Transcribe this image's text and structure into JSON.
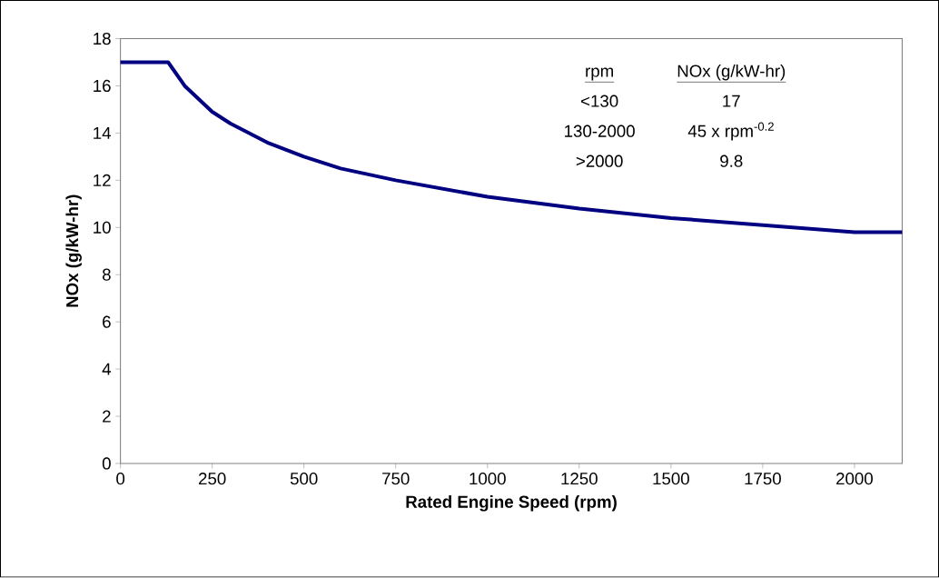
{
  "chart_data": {
    "type": "line",
    "xlabel": "Rated Engine Speed (rpm)",
    "ylabel": "NOx (g/kW-hr)",
    "x": [
      0,
      130,
      175,
      250,
      300,
      400,
      500,
      600,
      750,
      1000,
      1250,
      1500,
      1750,
      2000,
      2130
    ],
    "series": [
      {
        "color": "#000080",
        "values": [
          17,
          17,
          16,
          14.9,
          14.4,
          13.6,
          13,
          12.5,
          12,
          11.3,
          10.8,
          10.4,
          10.1,
          9.8,
          9.8
        ]
      }
    ],
    "xlim": [
      0,
      2130
    ],
    "ylim": [
      0,
      18
    ],
    "xticks": [
      0,
      250,
      500,
      750,
      1000,
      1250,
      1500,
      1750,
      2000
    ],
    "yticks": [
      0,
      2,
      4,
      6,
      8,
      10,
      12,
      14,
      16,
      18
    ],
    "annotations": [
      "rpm",
      "NOx (g/kW-hr)",
      "<130",
      "17",
      "130-2000",
      "45 x rpm$^{-0.2}$",
      ">2000",
      "9.8"
    ],
    "grid": false,
    "marker": "none",
    "line_style": "solid"
  }
}
